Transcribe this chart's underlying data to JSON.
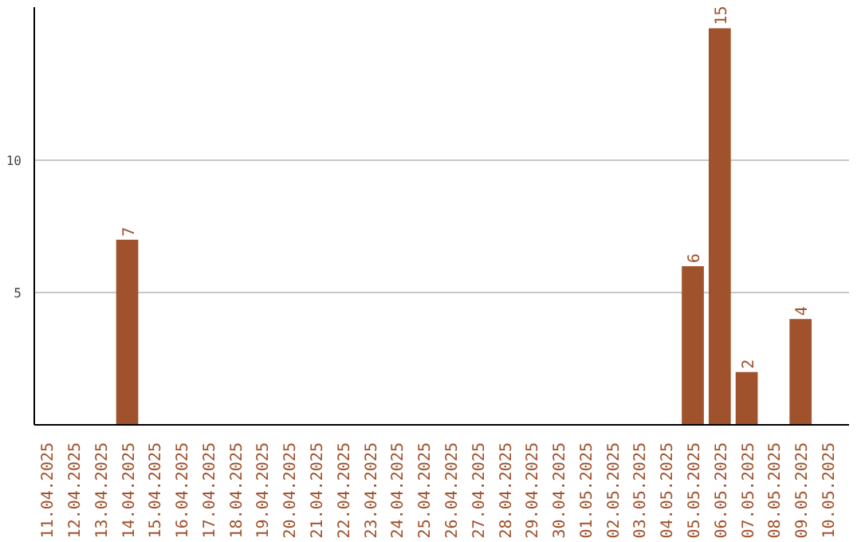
{
  "chart_data": {
    "type": "bar",
    "categories": [
      "11.04.2025",
      "12.04.2025",
      "13.04.2025",
      "14.04.2025",
      "15.04.2025",
      "16.04.2025",
      "17.04.2025",
      "18.04.2025",
      "19.04.2025",
      "20.04.2025",
      "21.04.2025",
      "22.04.2025",
      "23.04.2025",
      "24.04.2025",
      "25.04.2025",
      "26.04.2025",
      "27.04.2025",
      "28.04.2025",
      "29.04.2025",
      "30.04.2025",
      "01.05.2025",
      "02.05.2025",
      "03.05.2025",
      "04.05.2025",
      "05.05.2025",
      "06.05.2025",
      "07.05.2025",
      "08.05.2025",
      "09.05.2025",
      "10.05.2025"
    ],
    "values": [
      0,
      0,
      0,
      7,
      0,
      0,
      0,
      0,
      0,
      0,
      0,
      0,
      0,
      0,
      0,
      0,
      0,
      0,
      0,
      0,
      0,
      0,
      0,
      0,
      6,
      15,
      2,
      0,
      4,
      0
    ],
    "value_labels": [
      null,
      null,
      null,
      "7",
      null,
      null,
      null,
      null,
      null,
      null,
      null,
      null,
      null,
      null,
      null,
      null,
      null,
      null,
      null,
      null,
      null,
      null,
      null,
      null,
      "6",
      "15",
      "2",
      null,
      "4",
      null
    ],
    "color": "#a0522d",
    "ylim": [
      0,
      15.8
    ],
    "yticks": [
      5,
      10
    ],
    "grid": "y"
  }
}
